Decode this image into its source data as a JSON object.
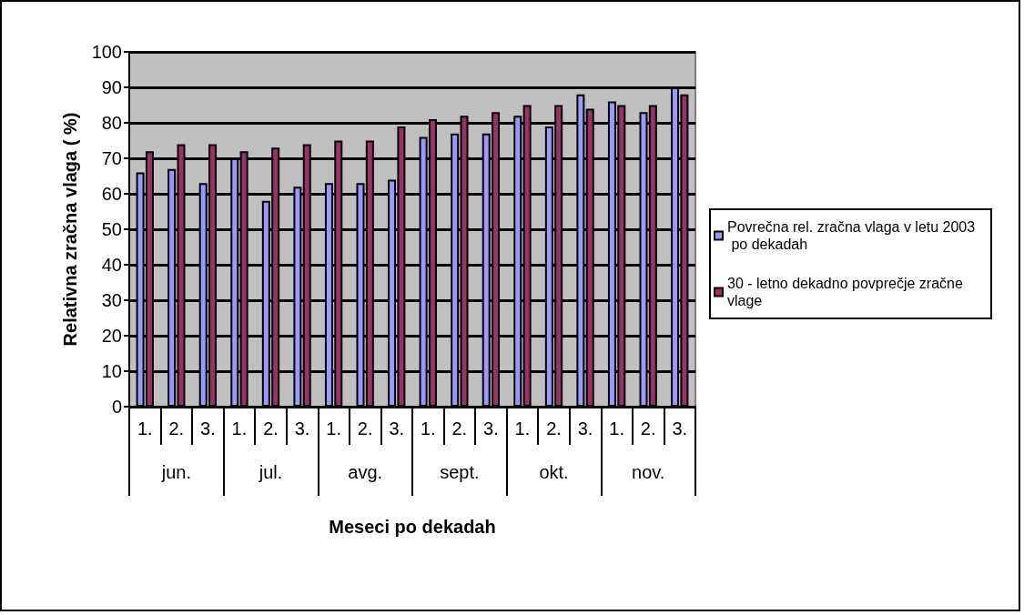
{
  "chart_data": {
    "type": "bar",
    "xlabel": "Meseci po dekadah",
    "ylabel": "Relativna zračna vlaga ( %)",
    "categories": [
      "1.",
      "2.",
      "3.",
      "1.",
      "2.",
      "3.",
      "1.",
      "2.",
      "3.",
      "1.",
      "2.",
      "3.",
      "1.",
      "2.",
      "3.",
      "1.",
      "2.",
      "3."
    ],
    "annotations": [
      "jun.",
      "jul.",
      "avg.",
      "sept.",
      "okt.",
      "nov."
    ],
    "series": [
      {
        "name": "Povrečna rel. zračna vlaga v letu 2003 po dekadah",
        "color": "#9999ff",
        "values": [
          66,
          67,
          63,
          70,
          58,
          62,
          63,
          63,
          64,
          76,
          77,
          77,
          82,
          79,
          88,
          86,
          83,
          90
        ]
      },
      {
        "name": "30 - letno dekadno povprečje zračne vlage",
        "color": "#993366",
        "values": [
          72,
          74,
          74,
          72,
          73,
          74,
          75,
          75,
          79,
          81,
          82,
          83,
          85,
          85,
          84,
          85,
          85,
          88
        ]
      }
    ],
    "ylim": [
      0,
      100
    ],
    "yticks": [
      0,
      10,
      20,
      30,
      40,
      50,
      60,
      70,
      80,
      90,
      100
    ],
    "grid": "y",
    "legend": "right"
  }
}
